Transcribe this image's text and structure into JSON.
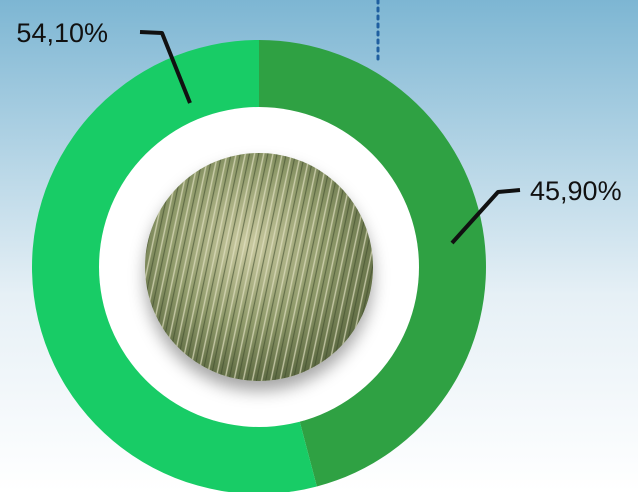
{
  "chart_data": {
    "type": "pie",
    "values": [
      45.9,
      54.1
    ],
    "value_labels": [
      "45,90%",
      "54,10%"
    ],
    "colors": [
      "#2fa143",
      "#18cc66"
    ]
  }
}
